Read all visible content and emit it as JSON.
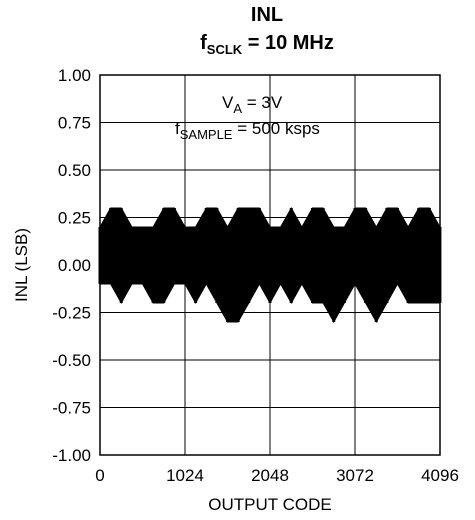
{
  "chart_data": {
    "type": "line",
    "title": "INL",
    "subtitle": {
      "main": "f",
      "sub": "SCLK",
      "rest": " = 10 MHz"
    },
    "xlabel": "OUTPUT CODE",
    "ylabel": "INL (LSB)",
    "xlim": [
      0,
      4096
    ],
    "ylim": [
      -1.0,
      1.0
    ],
    "xticks": [
      0,
      1024,
      2048,
      3072,
      4096
    ],
    "xtick_labels": [
      "0",
      "1024",
      "2048",
      "3072",
      "4096"
    ],
    "yticks": [
      1.0,
      0.75,
      0.5,
      0.25,
      0.0,
      -0.25,
      -0.5,
      -0.75,
      -1.0
    ],
    "ytick_labels": [
      "1.00",
      "0.75",
      "0.50",
      "0.25",
      "0.00",
      "-0.25",
      "-0.50",
      "-0.75",
      "-1.00"
    ],
    "grid": true,
    "annotations": [
      {
        "main": "V",
        "sub": "A",
        "rest": " = 3V"
      },
      {
        "main": "f",
        "sub": "SAMPLE",
        "rest": " = 500 ksps"
      }
    ],
    "series": [
      {
        "x": [
          0,
          128,
          256,
          384,
          512,
          640,
          768,
          896,
          1024,
          1152,
          1280,
          1408,
          1536,
          1664,
          1792,
          1920,
          2048,
          2176,
          2304,
          2432,
          2560,
          2688,
          2816,
          2944,
          3072,
          3200,
          3328,
          3456,
          3584,
          3712,
          3840,
          3968,
          4095
        ],
        "upper": [
          0.2,
          0.3,
          0.3,
          0.2,
          0.2,
          0.2,
          0.3,
          0.3,
          0.2,
          0.2,
          0.3,
          0.3,
          0.2,
          0.3,
          0.3,
          0.3,
          0.2,
          0.2,
          0.3,
          0.2,
          0.3,
          0.3,
          0.2,
          0.2,
          0.3,
          0.3,
          0.2,
          0.3,
          0.3,
          0.2,
          0.3,
          0.3,
          0.2
        ],
        "lower": [
          -0.1,
          -0.1,
          -0.2,
          -0.1,
          -0.1,
          -0.2,
          -0.2,
          -0.1,
          -0.1,
          -0.2,
          -0.1,
          -0.2,
          -0.3,
          -0.3,
          -0.2,
          -0.1,
          -0.2,
          -0.1,
          -0.2,
          -0.1,
          -0.2,
          -0.2,
          -0.3,
          -0.2,
          -0.1,
          -0.2,
          -0.3,
          -0.2,
          -0.1,
          -0.2,
          -0.2,
          -0.2,
          -0.2
        ]
      }
    ],
    "colors": {
      "line": "#000000",
      "grid": "#000000",
      "background": "#ffffff"
    }
  }
}
